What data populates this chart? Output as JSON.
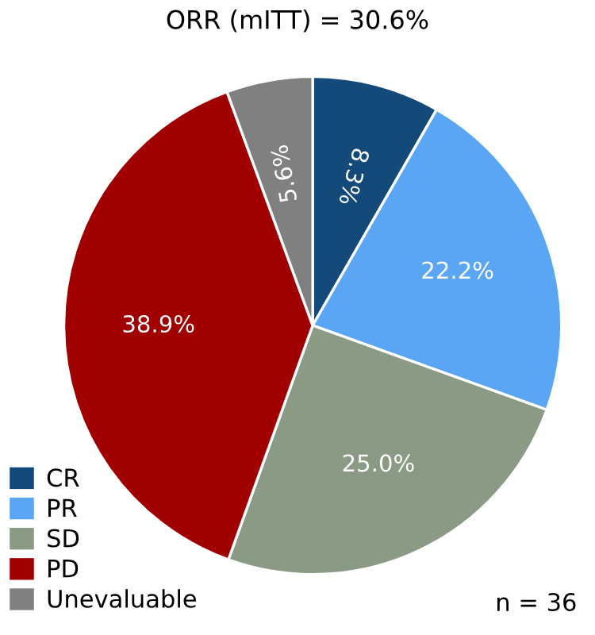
{
  "chart_data": {
    "type": "pie",
    "title": "ORR (mITT) = 30.6%",
    "categories": [
      "CR",
      "PR",
      "SD",
      "PD",
      "Unevaluable"
    ],
    "values": [
      8.3,
      22.2,
      25.0,
      38.9,
      5.6
    ],
    "colors": [
      "#134a7a",
      "#5aa6f5",
      "#8a9a84",
      "#a00000",
      "#808080"
    ],
    "value_labels": [
      "8.3%",
      "22.2%",
      "25.0%",
      "38.9%",
      "5.6%"
    ],
    "legend": "bottom left",
    "annotations": [
      "n = 36"
    ]
  }
}
